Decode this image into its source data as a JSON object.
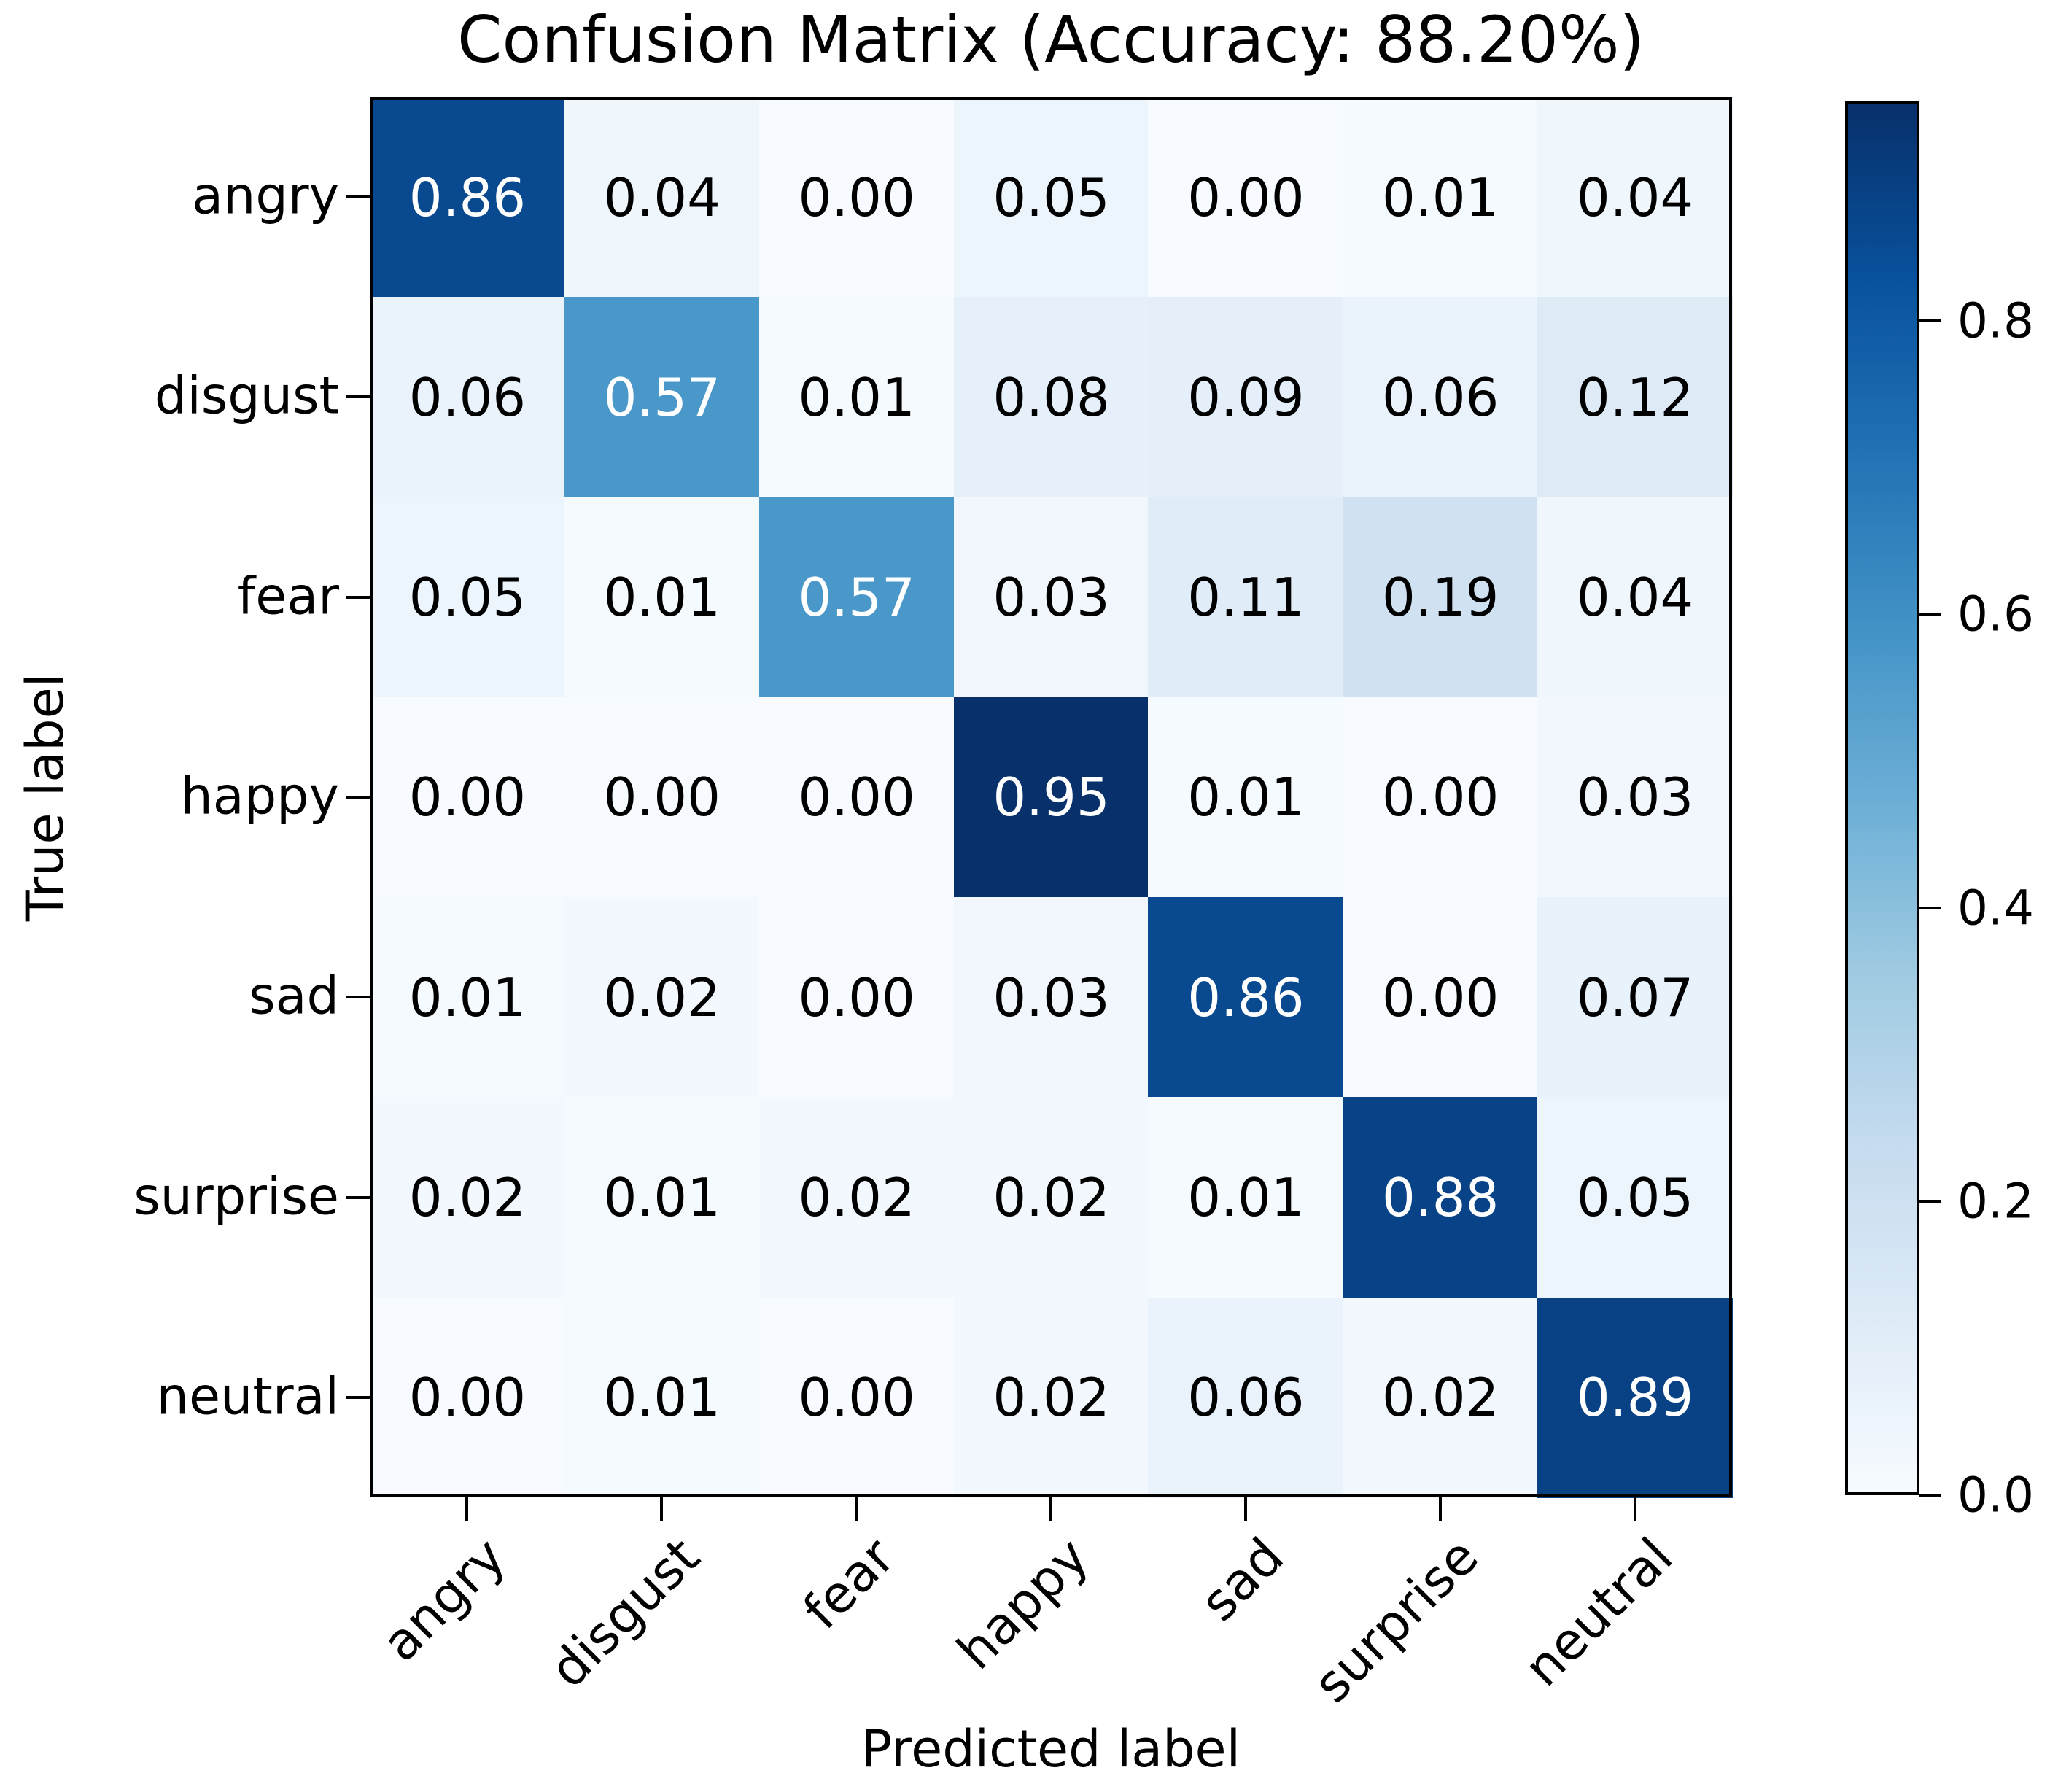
{
  "chart_data": {
    "type": "heatmap",
    "title": "Confusion Matrix (Accuracy: 88.20%)",
    "accuracy": "88.20%",
    "xlabel": "Predicted label",
    "ylabel": "True label",
    "categories": [
      "angry",
      "disgust",
      "fear",
      "happy",
      "sad",
      "surprise",
      "neutral"
    ],
    "x_tick_labels": [
      "angry",
      "disgust",
      "fear",
      "happy",
      "sad",
      "surprise",
      "neutral"
    ],
    "y_tick_labels": [
      "angry",
      "disgust",
      "fear",
      "happy",
      "sad",
      "surprise",
      "neutral"
    ],
    "series": [
      {
        "name": "angry",
        "values": [
          0.86,
          0.04,
          0.0,
          0.05,
          0.0,
          0.01,
          0.04
        ]
      },
      {
        "name": "disgust",
        "values": [
          0.06,
          0.57,
          0.01,
          0.08,
          0.09,
          0.06,
          0.12
        ]
      },
      {
        "name": "fear",
        "values": [
          0.05,
          0.01,
          0.57,
          0.03,
          0.11,
          0.19,
          0.04
        ]
      },
      {
        "name": "happy",
        "values": [
          0.0,
          0.0,
          0.0,
          0.95,
          0.01,
          0.0,
          0.03
        ]
      },
      {
        "name": "sad",
        "values": [
          0.01,
          0.02,
          0.0,
          0.03,
          0.86,
          0.0,
          0.07
        ]
      },
      {
        "name": "surprise",
        "values": [
          0.02,
          0.01,
          0.02,
          0.02,
          0.01,
          0.88,
          0.05
        ]
      },
      {
        "name": "neutral",
        "values": [
          0.0,
          0.01,
          0.0,
          0.02,
          0.06,
          0.02,
          0.89
        ]
      }
    ],
    "value_decimals": 2,
    "vmin": 0.0,
    "vmax": 0.95,
    "colorbar": {
      "position": "right",
      "tick_labels": [
        "0.8",
        "0.6",
        "0.4",
        "0.2",
        "0.0"
      ],
      "tick_values": [
        0.8,
        0.6,
        0.4,
        0.2,
        0.0
      ]
    },
    "colormap": {
      "name": "Blues",
      "anchors": [
        "#f7fbff",
        "#deebf7",
        "#c6dbef",
        "#9ecae1",
        "#6baed6",
        "#4292c6",
        "#2171b5",
        "#08519c",
        "#08306b"
      ]
    },
    "colors": {
      "cell_text_dark": "#000000",
      "cell_text_light": "#ffffff",
      "axis": "#000000",
      "background": "#ffffff"
    },
    "grid": false,
    "legend_position": "colorbar-right"
  }
}
